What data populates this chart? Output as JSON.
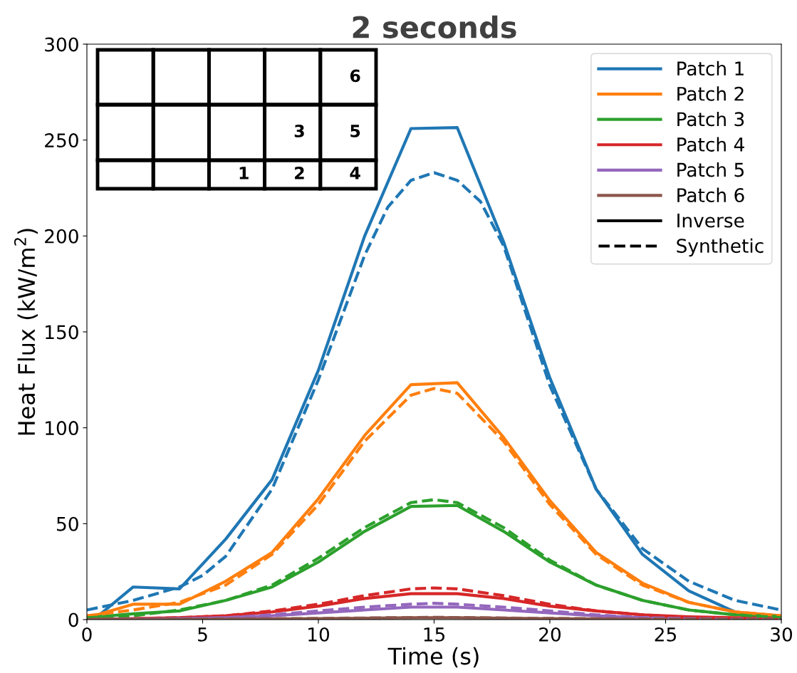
{
  "chart_data": {
    "type": "line",
    "title": "2 seconds",
    "xlabel": "Time (s)",
    "ylabel": "Heat Flux (kW/m$^{2}$)",
    "xlim": [
      0,
      30
    ],
    "xticks": [
      0,
      5,
      10,
      15,
      20,
      25,
      30
    ],
    "ylim": [
      0,
      300
    ],
    "yticks": [
      0,
      50,
      100,
      150,
      200,
      250,
      300
    ],
    "grid": false,
    "legend": "top right",
    "marker": "none",
    "annotations": [
      "1",
      "2",
      "3",
      "4",
      "5",
      "6"
    ],
    "series": [
      {
        "name": "Patch 1",
        "color": "#1f77b4",
        "line_style": "solid",
        "x": [
          0.5,
          2,
          4,
          6,
          8,
          10,
          12,
          14,
          16,
          18,
          20,
          22,
          24,
          26,
          28,
          30
        ],
        "values": [
          2,
          17,
          16,
          42,
          73,
          130,
          200,
          256,
          256.5,
          197,
          126,
          68,
          34,
          15,
          4,
          1
        ]
      },
      {
        "name": "Patch 2",
        "color": "#ff7f0e",
        "line_style": "solid",
        "x": [
          0,
          2,
          4,
          6,
          8,
          10,
          12,
          14,
          16,
          18,
          20,
          22,
          24,
          26,
          28,
          30
        ],
        "values": [
          1,
          8,
          8,
          20,
          35,
          63,
          96,
          122.5,
          123.5,
          95,
          62,
          35,
          19,
          9,
          4,
          2
        ]
      },
      {
        "name": "Patch 3",
        "color": "#2ca02c",
        "line_style": "solid",
        "x": [
          0,
          2,
          4,
          6,
          8,
          10,
          12,
          14,
          16,
          18,
          20,
          22,
          24,
          26,
          28,
          30
        ],
        "values": [
          1,
          3,
          4.5,
          10,
          17,
          30,
          46,
          59,
          59.5,
          46,
          30,
          18,
          10,
          5,
          2.5,
          1.5
        ]
      },
      {
        "name": "Patch 4",
        "color": "#d62728",
        "line_style": "solid",
        "x": [
          0,
          2,
          4,
          6,
          8,
          10,
          12,
          14,
          16,
          18,
          20,
          22,
          24,
          26,
          28,
          30
        ],
        "values": [
          0,
          0.5,
          1,
          2,
          4,
          7,
          11,
          13.5,
          13.5,
          11,
          7,
          4.5,
          2.5,
          1.5,
          1,
          0.5
        ]
      },
      {
        "name": "Patch 5",
        "color": "#9467bd",
        "line_style": "solid",
        "x": [
          0,
          2,
          4,
          6,
          8,
          10,
          12,
          14,
          16,
          18,
          20,
          22,
          24,
          26,
          28,
          30
        ],
        "values": [
          0,
          0.2,
          0.5,
          1,
          2,
          3.5,
          5,
          6.5,
          6.5,
          5,
          3.5,
          2,
          1,
          0.5,
          0.3,
          0.2
        ]
      },
      {
        "name": "Patch 6",
        "color": "#8c564b",
        "line_style": "solid",
        "x": [
          0,
          6,
          10,
          14,
          16,
          20,
          24,
          30
        ],
        "values": [
          0,
          0.2,
          0.5,
          1,
          1,
          0.5,
          0.2,
          0
        ]
      },
      {
        "color": "#1f77b4",
        "line_style": "dashed",
        "x": [
          0,
          2,
          4,
          5,
          6,
          8,
          10,
          12,
          13,
          14,
          15,
          16,
          17,
          18,
          20,
          22,
          24,
          26,
          28,
          30
        ],
        "values": [
          5,
          10,
          17,
          23,
          33,
          68,
          125,
          190,
          215,
          229,
          233,
          229,
          218,
          195,
          122,
          68,
          37,
          20,
          10,
          5
        ]
      },
      {
        "color": "#ff7f0e",
        "line_style": "dashed",
        "x": [
          0,
          2,
          4,
          6,
          8,
          10,
          12,
          14,
          15,
          16,
          18,
          20,
          22,
          24,
          26,
          28,
          30
        ],
        "values": [
          2,
          5,
          9,
          18,
          34,
          60,
          93,
          117,
          120.5,
          118,
          93,
          60,
          34,
          18,
          9,
          4,
          2
        ]
      },
      {
        "color": "#2ca02c",
        "line_style": "dashed",
        "x": [
          0,
          2,
          4,
          6,
          8,
          10,
          12,
          14,
          15,
          16,
          18,
          20,
          22,
          24,
          26,
          28,
          30
        ],
        "values": [
          1,
          2,
          5,
          10,
          18,
          32,
          48,
          61,
          62.5,
          61,
          48,
          31,
          18,
          10,
          5,
          2.5,
          1
        ]
      },
      {
        "color": "#d62728",
        "line_style": "dashed",
        "x": [
          0,
          4,
          6,
          8,
          10,
          12,
          14,
          15,
          16,
          18,
          20,
          22,
          24,
          26,
          28,
          30
        ],
        "values": [
          0,
          1,
          2,
          4.5,
          8,
          12.5,
          16,
          16.5,
          16,
          12.5,
          8,
          4.5,
          2.5,
          1,
          0.5,
          0
        ]
      },
      {
        "color": "#9467bd",
        "line_style": "dashed",
        "x": [
          0,
          4,
          6,
          8,
          10,
          12,
          14,
          15,
          16,
          18,
          20,
          22,
          24,
          26,
          28,
          30
        ],
        "values": [
          0,
          0.5,
          1,
          2.5,
          4.5,
          6.5,
          8,
          8.5,
          8,
          6.5,
          4.5,
          2.5,
          1,
          0.5,
          0.2,
          0
        ]
      },
      {
        "color": "#8c564b",
        "line_style": "dashed",
        "x": [
          0,
          10,
          15,
          20,
          30
        ],
        "values": [
          0,
          0.6,
          1.2,
          0.6,
          0
        ]
      },
      {
        "name": "Inverse",
        "color": "#000000",
        "line_style": "solid"
      },
      {
        "name": "Synthetic",
        "color": "#000000",
        "line_style": "dashed"
      }
    ]
  }
}
